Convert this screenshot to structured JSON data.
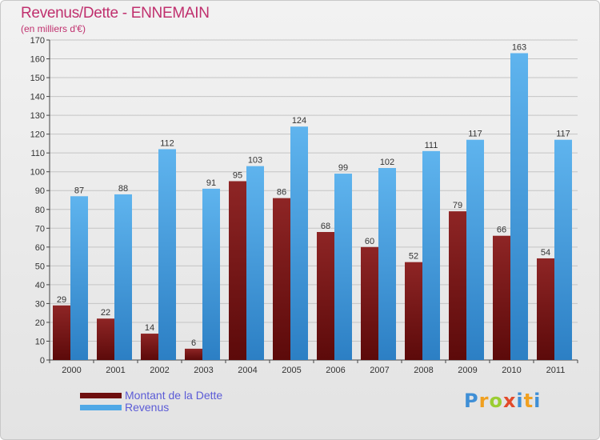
{
  "header": {
    "title": "Revenus/Dette - ENNEMAIN",
    "subtitle": "(en milliers d'€)"
  },
  "legend": {
    "items": [
      {
        "label": "Montant de la Dette",
        "color": "#7a1515"
      },
      {
        "label": "Revenus",
        "color": "#4fa8e6"
      }
    ]
  },
  "logo": {
    "text": "Proxiti"
  },
  "chart_data": {
    "type": "bar",
    "categories": [
      "2000",
      "2001",
      "2002",
      "2003",
      "2004",
      "2005",
      "2006",
      "2007",
      "2008",
      "2009",
      "2010",
      "2011"
    ],
    "series": [
      {
        "name": "Montant de la Dette",
        "color": "#7a1515",
        "values": [
          29,
          22,
          14,
          6,
          95,
          86,
          68,
          60,
          52,
          79,
          66,
          54
        ]
      },
      {
        "name": "Revenus",
        "color": "#4fa8e6",
        "values": [
          87,
          88,
          112,
          91,
          103,
          124,
          99,
          102,
          111,
          117,
          163,
          117
        ]
      }
    ],
    "title": "Revenus/Dette - ENNEMAIN",
    "ylabel": "(en milliers d'€)",
    "ylim": [
      0,
      170
    ],
    "yticks": [
      0,
      10,
      20,
      30,
      40,
      50,
      60,
      70,
      80,
      90,
      100,
      110,
      120,
      130,
      140,
      150,
      160,
      170
    ],
    "grid": true,
    "data_labels": true,
    "legend_position": "bottom-left"
  }
}
